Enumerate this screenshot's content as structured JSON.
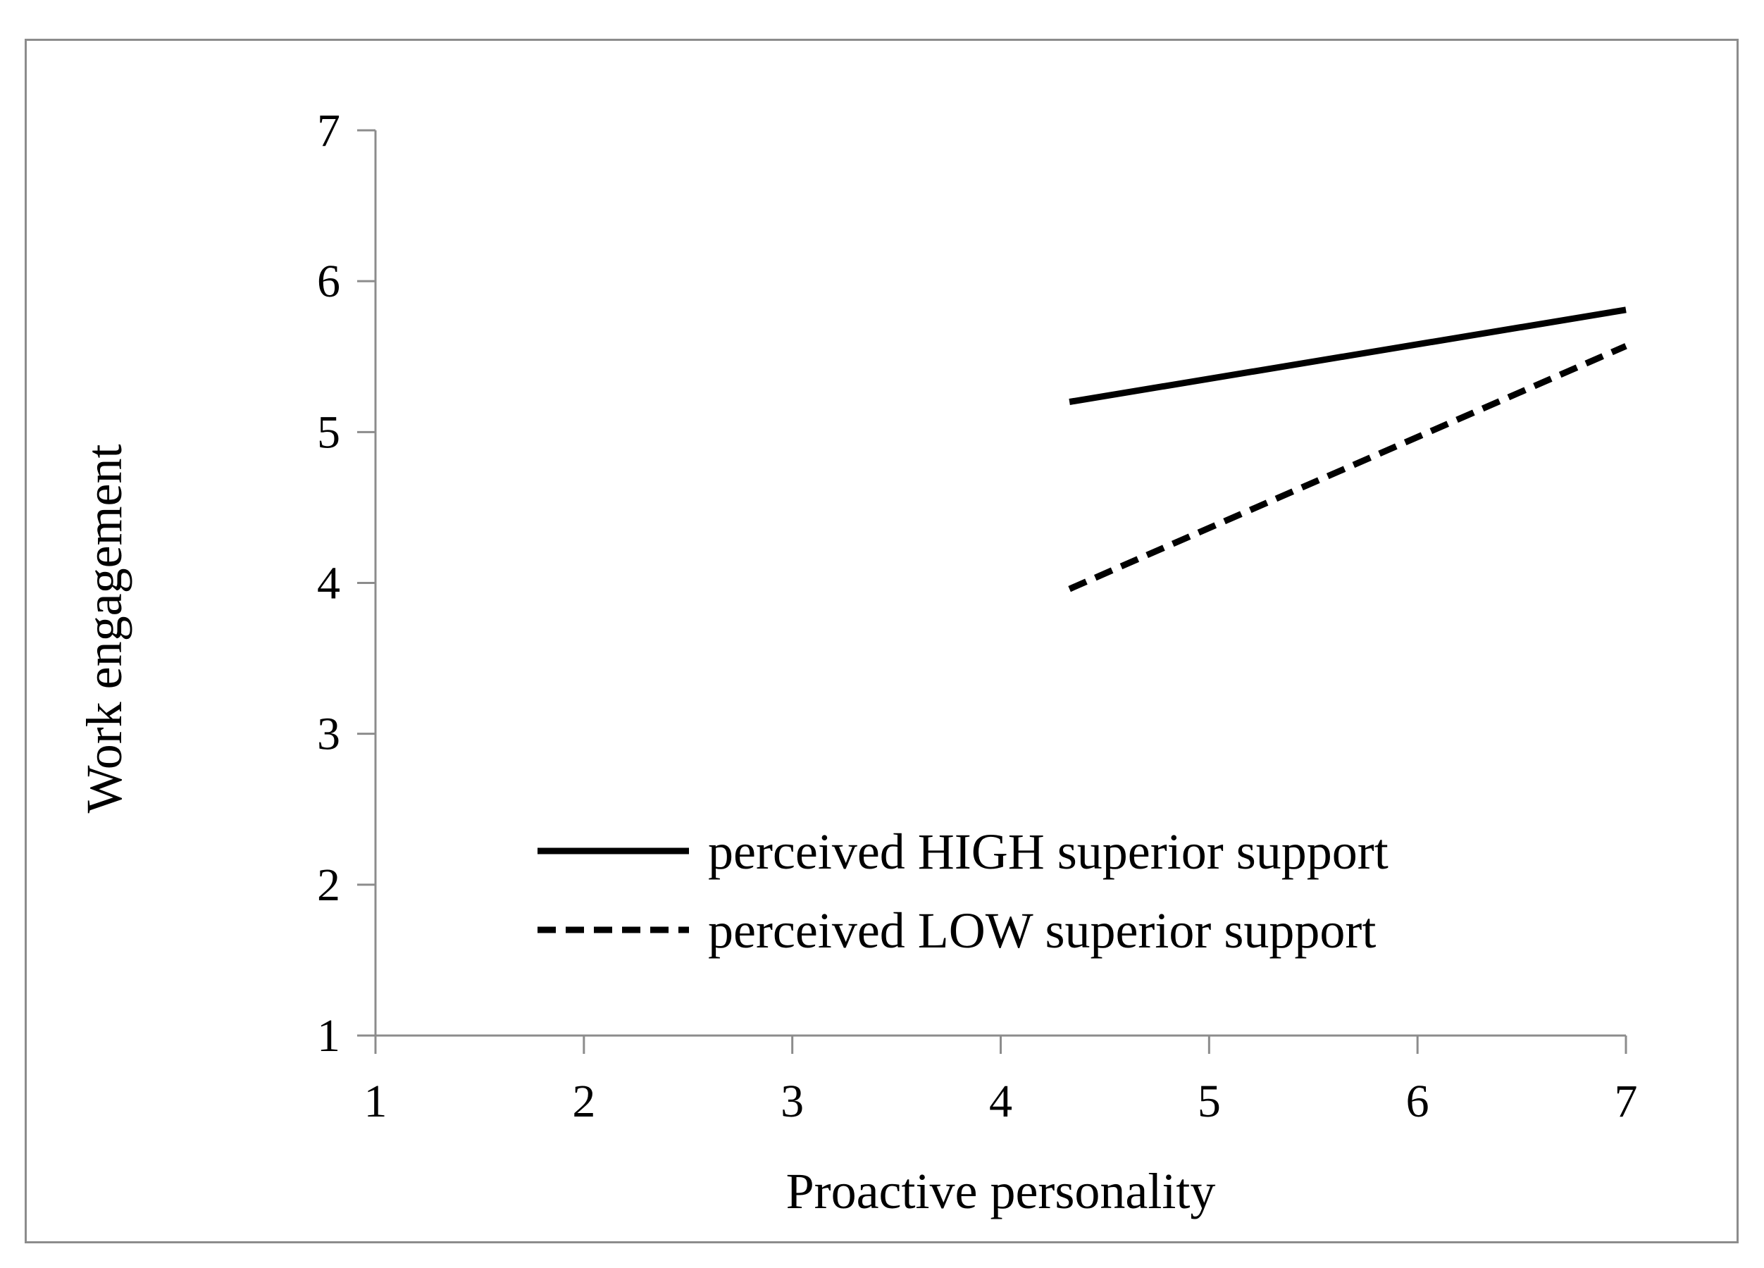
{
  "chart_data": {
    "type": "line",
    "title": "",
    "xlabel": "Proactive personality",
    "ylabel": "Work engagement",
    "xlim": [
      1,
      7
    ],
    "ylim": [
      1,
      7
    ],
    "xticks": [
      "1",
      "2",
      "3",
      "4",
      "5",
      "6",
      "7"
    ],
    "yticks": [
      "1",
      "2",
      "3",
      "4",
      "5",
      "6",
      "7"
    ],
    "grid": false,
    "legend_position": "bottom-center",
    "series": [
      {
        "name": "perceived HIGH superior support",
        "style": "solid",
        "color": "#000000",
        "x": [
          4.33,
          7
        ],
        "y": [
          5.2,
          5.81
        ]
      },
      {
        "name": "perceived LOW superior support",
        "style": "dashed",
        "color": "#000000",
        "x": [
          4.33,
          7
        ],
        "y": [
          3.96,
          5.57
        ]
      }
    ]
  }
}
